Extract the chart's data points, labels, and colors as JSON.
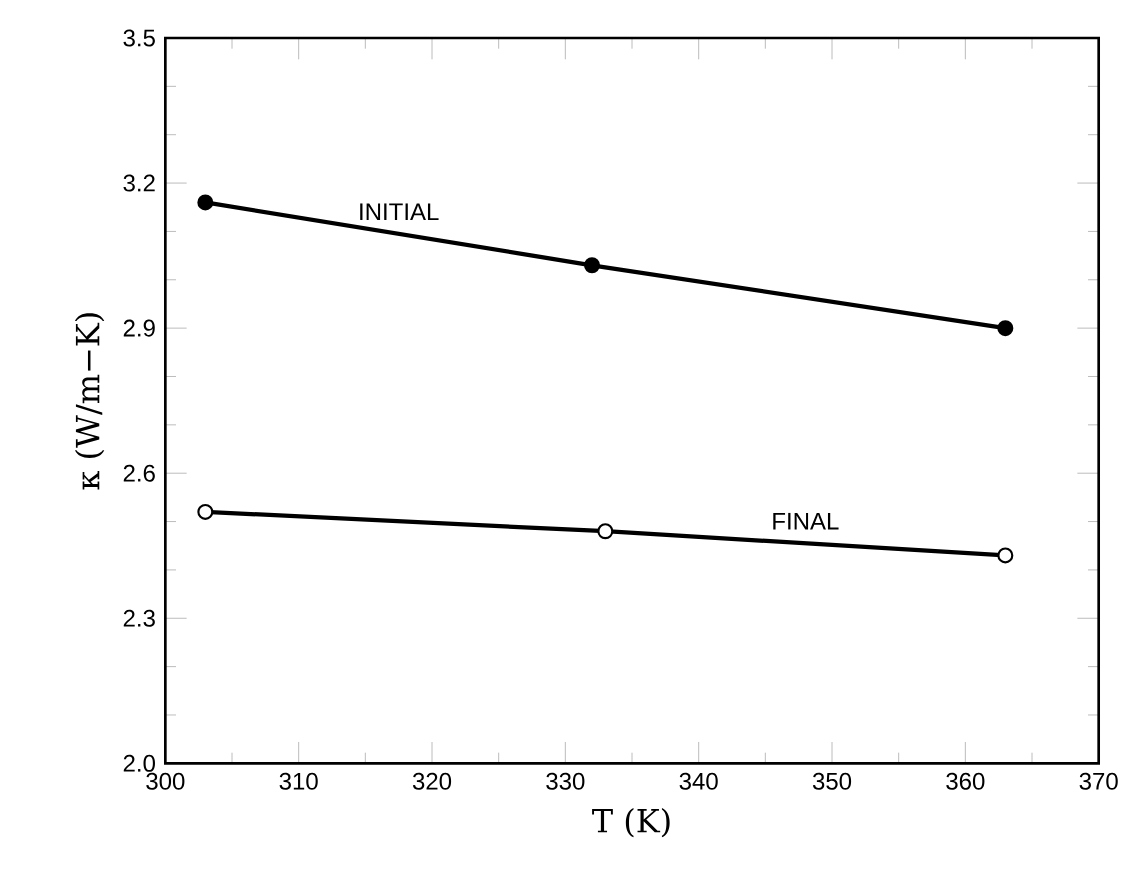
{
  "chart_data": {
    "type": "line",
    "xlabel": "T (K)",
    "ylabel": "κ (W/m−K)",
    "xlim": [
      300,
      370
    ],
    "ylim": [
      2.0,
      3.5
    ],
    "xticks": [
      300,
      310,
      320,
      330,
      340,
      350,
      360,
      370
    ],
    "yticks": [
      {
        "value": 2.0,
        "label": "2.0"
      },
      2.3,
      2.6,
      2.9,
      3.2,
      3.5
    ],
    "marker": "circle",
    "line_style": "solid",
    "grid": false,
    "legend": false,
    "series": [
      {
        "name": "INITIAL",
        "color": "#000000",
        "x": [
          303,
          332,
          363
        ],
        "values": [
          3.16,
          3.03,
          2.9
        ]
      },
      {
        "name": "FINAL",
        "color": "#000000",
        "x": [
          303,
          333,
          363
        ],
        "values": [
          2.52,
          2.48,
          2.43
        ]
      }
    ]
  }
}
